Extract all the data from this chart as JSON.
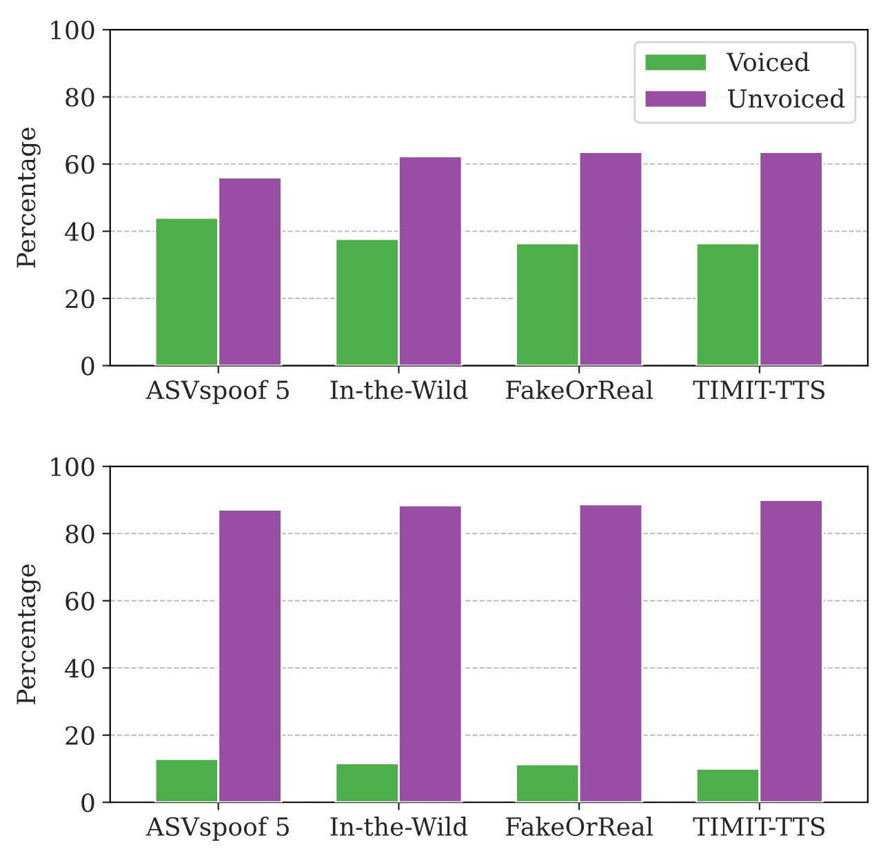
{
  "chart_data": [
    {
      "type": "bar",
      "ylabel": "Percentage",
      "categories": [
        "ASVspoof 5",
        "In-the-Wild",
        "FakeOrReal",
        "TIMIT-TTS"
      ],
      "series": [
        {
          "name": "Voiced",
          "color": "#4daf4a",
          "values": [
            44,
            37.7,
            36.4,
            36.4
          ]
        },
        {
          "name": "Unvoiced",
          "color": "#984ea3",
          "values": [
            56,
            62.3,
            63.6,
            63.6
          ]
        }
      ],
      "ylim": [
        0,
        100
      ],
      "yticks": [
        0,
        20,
        40,
        60,
        80,
        100
      ],
      "grid": "y",
      "legend": "top right"
    },
    {
      "type": "bar",
      "ylabel": "Percentage",
      "categories": [
        "ASVspoof 5",
        "In-the-Wild",
        "FakeOrReal",
        "TIMIT-TTS"
      ],
      "series": [
        {
          "color": "#4daf4a",
          "values": [
            12.9,
            11.6,
            11.3,
            10
          ]
        },
        {
          "color": "#984ea3",
          "values": [
            87.1,
            88.4,
            88.7,
            90
          ]
        }
      ],
      "ylim": [
        0,
        100
      ],
      "yticks": [
        0,
        20,
        40,
        60,
        80,
        100
      ],
      "grid": "y"
    }
  ]
}
